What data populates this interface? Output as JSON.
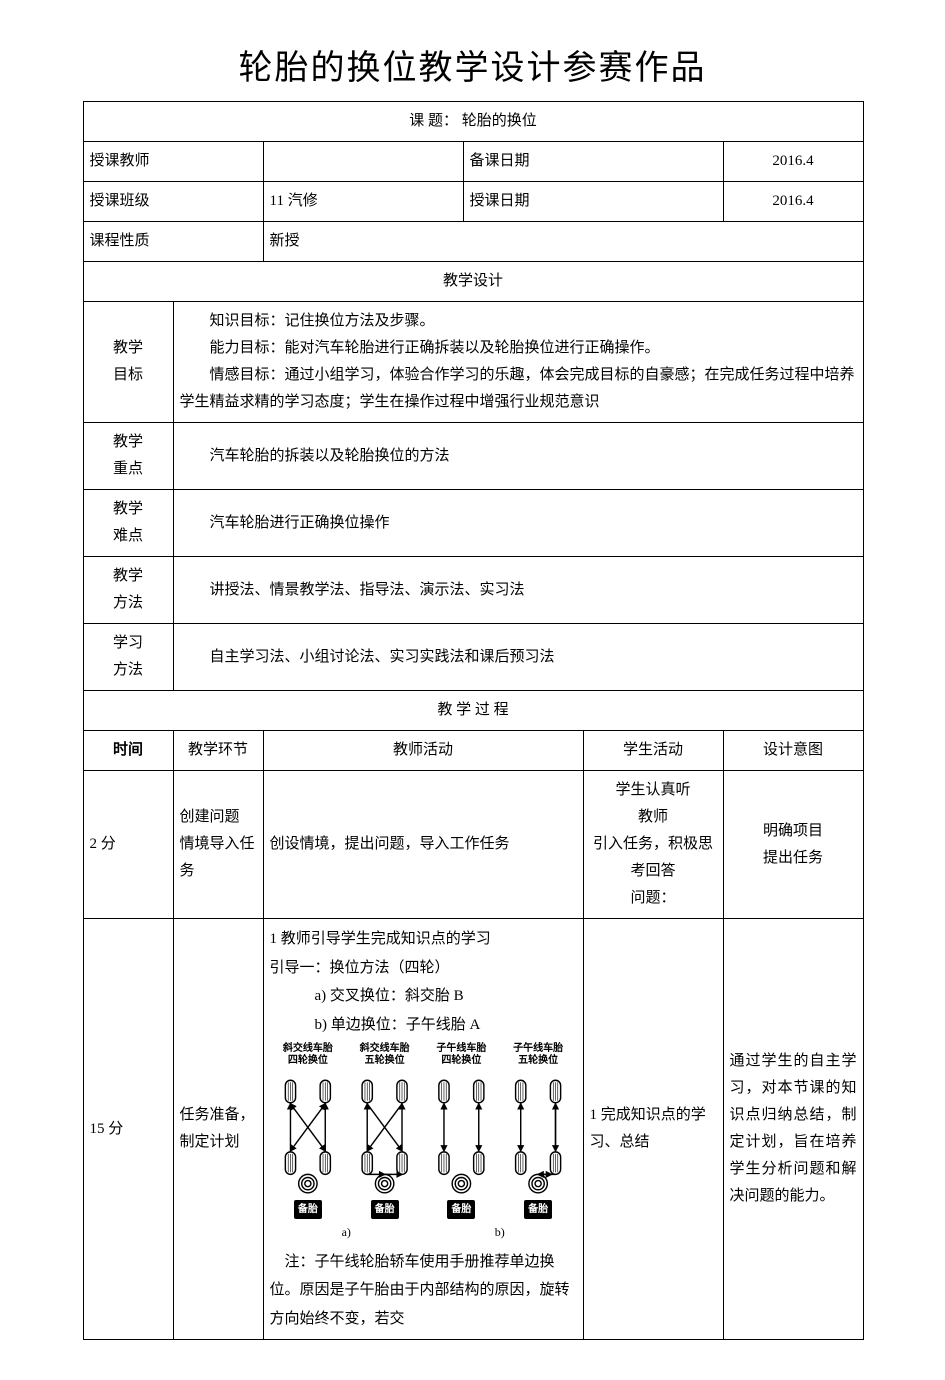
{
  "title": "轮胎的换位教学设计参赛作品",
  "topic_row": {
    "label": "课  题：",
    "value": "轮胎的换位"
  },
  "info": {
    "teacher_label": "授课教师",
    "teacher_value": "",
    "prepdate_label": "备课日期",
    "prepdate_value": "2016.4",
    "class_label": "授课班级",
    "class_value": "11 汽修",
    "teachdate_label": "授课日期",
    "teachdate_value": "2016.4",
    "nature_label": "课程性质",
    "nature_value": "新授"
  },
  "design_header": "教学设计",
  "goals": {
    "label": "教学\n目标",
    "line1": "知识目标：记住换位方法及步骤。",
    "line2": "能力目标：能对汽车轮胎进行正确拆装以及轮胎换位进行正确操作。",
    "line3": "情感目标：通过小组学习，体验合作学习的乐趣，体会完成目标的自豪感；在完成任务过程中培养学生精益求精的学习态度；学生在操作过程中增强行业规范意识"
  },
  "keypoint": {
    "label": "教学\n重点",
    "value": "汽车轮胎的拆装以及轮胎换位的方法"
  },
  "difficulty": {
    "label": "教学\n难点",
    "value": "汽车轮胎进行正确换位操作"
  },
  "teach_method": {
    "label": "教学\n方法",
    "value": "讲授法、情景教学法、指导法、演示法、实习法"
  },
  "learn_method": {
    "label": "学习\n方法",
    "value": "自主学习法、小组讨论法、实习实践法和课后预习法"
  },
  "process_header": "教 学 过 程",
  "process_cols": {
    "time": "时间",
    "phase": "教学环节",
    "teacher": "教师活动",
    "student": "学生活动",
    "intent": "设计意图"
  },
  "row1": {
    "time": "2 分",
    "phase": "创建问题\n情境导入任务",
    "teacher": "创设情境，提出问题，导入工作任务",
    "student": "学生认真听\n教师\n引入任务，积极思考回答\n问题：",
    "intent": "明确项目\n提出任务"
  },
  "row2": {
    "time": "15 分",
    "phase": "任务准备，制定计划",
    "teacher_intro": "1 教师引导学生完成知识点的学习",
    "teacher_guide": "引导一：换位方法（四轮）",
    "teacher_a": "a)  交叉换位：斜交胎 B",
    "teacher_b": "b)  单边换位：子午线胎 A",
    "teacher_note": "注：子午线轮胎轿车使用手册推荐单边换位。原因是子午胎由于内部结构的原因，旋转方向始终不变，若交",
    "student": "1 完成知识点的学习、总结",
    "intent": "通过学生的自主学习，对本节课的知识点归纳总结，制定计划，旨在培养学生分析问题和解决问题的能力。"
  },
  "diagram": {
    "titles": [
      "斜交线车胎\n四轮换位",
      "斜交线车胎\n五轮换位",
      "子午线车胎\n四轮换位",
      "子午线车胎\n五轮换位"
    ],
    "spare_label": "备胎",
    "ab_labels": [
      "a)",
      "b)"
    ],
    "colors": {
      "tire_fill": "#ffffff",
      "tire_stroke": "#000000",
      "arrow": "#000000",
      "spare_bg": "#000000",
      "spare_text": "#ffffff"
    },
    "stroke_width": 1.4
  }
}
